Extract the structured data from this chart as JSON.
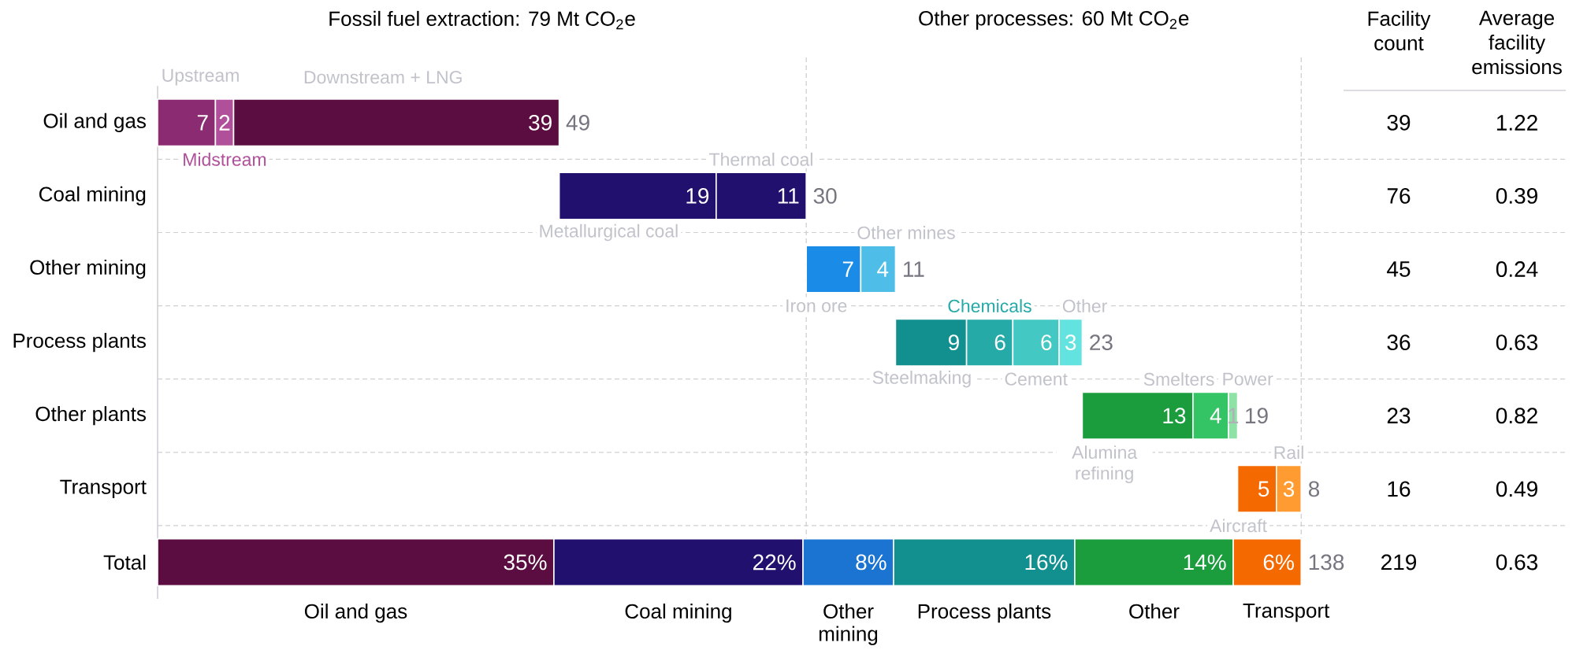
{
  "chart_data": [
    {
      "type": "bar",
      "orientation": "horizontal",
      "stacked": true,
      "categories": [
        "Oil and gas"
      ],
      "series": [
        {
          "name": "Upstream",
          "color": "#8b2b72",
          "values": [
            7.0
          ],
          "value_labels": [
            "7"
          ]
        },
        {
          "name": "Midstream",
          "color": "#b0509a",
          "values": [
            2.2
          ],
          "value_labels": [
            "2"
          ]
        },
        {
          "name": "Downstream + LNG",
          "color": "#5b0c40",
          "values": [
            39.4
          ],
          "value_labels": [
            "39"
          ]
        }
      ],
      "totals": [
        "49"
      ],
      "ref_lines": [
        {
          "axis": "x",
          "value": 78.5,
          "line_style": "dashed",
          "color": "#cccccc"
        },
        {
          "axis": "x",
          "value": 138.4,
          "line_style": "dashed",
          "color": "#cccccc"
        }
      ],
      "annotations": [
        "Fossil fuel extraction: 79 Mt CO$_{2}$e",
        "Other processes: 60 Mt CO$_{2}$e"
      ]
    },
    {
      "type": "bar",
      "orientation": "horizontal",
      "stacked": true,
      "categories": [
        "Coal mining"
      ],
      "series": [
        {
          "name": "Metallurgical coal",
          "color": "#22106e",
          "values": [
            19.0
          ],
          "value_labels": [
            "19"
          ]
        },
        {
          "name": "Thermal coal",
          "color": "#22106e",
          "values": [
            10.9
          ],
          "value_labels": [
            "11"
          ]
        }
      ],
      "totals": [
        "30"
      ]
    },
    {
      "type": "bar",
      "orientation": "horizontal",
      "stacked": true,
      "categories": [
        "Other mining"
      ],
      "series": [
        {
          "name": "Iron ore",
          "color": "#1a8be6",
          "values": [
            6.6
          ],
          "value_labels": [
            "7"
          ]
        },
        {
          "name": "Other mines",
          "color": "#4ebde8",
          "values": [
            4.2
          ],
          "value_labels": [
            "4"
          ]
        }
      ],
      "totals": [
        "11"
      ]
    },
    {
      "type": "bar",
      "orientation": "horizontal",
      "stacked": true,
      "categories": [
        "Process plants"
      ],
      "series": [
        {
          "name": "Steelmaking",
          "color": "#128f8f",
          "values": [
            8.6
          ],
          "value_labels": [
            "9"
          ]
        },
        {
          "name": "Chemicals",
          "color": "#25aaa8",
          "values": [
            5.6
          ],
          "value_labels": [
            "6"
          ]
        },
        {
          "name": "Cement",
          "color": "#44c8c3",
          "values": [
            5.6
          ],
          "value_labels": [
            "6"
          ]
        },
        {
          "name": "Other",
          "color": "#62e3df",
          "values": [
            2.8
          ],
          "value_labels": [
            "3"
          ]
        }
      ],
      "totals": [
        "23"
      ]
    },
    {
      "type": "bar",
      "orientation": "horizontal",
      "stacked": true,
      "categories": [
        "Other plants"
      ],
      "series": [
        {
          "name": "Alumina refining",
          "color": "#1b9d3e",
          "values": [
            13.4
          ],
          "value_labels": [
            "13"
          ]
        },
        {
          "name": "Smelters",
          "color": "#35c465",
          "values": [
            4.3
          ],
          "value_labels": [
            "4"
          ]
        },
        {
          "name": "Power",
          "color": "#8fe2a5",
          "values": [
            1.1
          ],
          "value_labels": [
            "1"
          ]
        }
      ],
      "totals": [
        "19"
      ]
    },
    {
      "type": "bar",
      "orientation": "horizontal",
      "stacked": true,
      "categories": [
        "Transport"
      ],
      "series": [
        {
          "name": "Aircraft",
          "color": "#f56a00",
          "values": [
            4.7
          ],
          "value_labels": [
            "5"
          ]
        },
        {
          "name": "Rail",
          "color": "#ff9b31",
          "values": [
            3.0
          ],
          "value_labels": [
            "3"
          ]
        }
      ],
      "totals": [
        "8"
      ]
    },
    {
      "type": "bar",
      "orientation": "horizontal",
      "stacked": true,
      "categories": [
        "Total"
      ],
      "series": [
        {
          "name": "Oil and gas",
          "color": "#5b0c40",
          "values": [
            35
          ],
          "value_labels": [
            "35%"
          ]
        },
        {
          "name": "Coal mining",
          "color": "#22106e",
          "values": [
            22
          ],
          "value_labels": [
            "22%"
          ]
        },
        {
          "name": "Other mining",
          "color": "#1b74d2",
          "values": [
            8
          ],
          "value_labels": [
            "8%"
          ]
        },
        {
          "name": "Process plants",
          "color": "#128f8f",
          "values": [
            16
          ],
          "value_labels": [
            "16%"
          ]
        },
        {
          "name": "Other",
          "color": "#1b9d3e",
          "values": [
            14
          ],
          "value_labels": [
            "14%"
          ]
        },
        {
          "name": "Transport",
          "color": "#f56a00",
          "values": [
            6
          ],
          "value_labels": [
            "6%"
          ]
        }
      ],
      "annotations": [
        {
          "text": "138",
          "x": 101,
          "y": "Total"
        }
      ]
    },
    {
      "type": "other",
      "annotations": [
        "Facility count",
        "Average facility emissions",
        "39",
        "1.22",
        "76",
        "0.39",
        "45",
        "0.24",
        "36",
        "0.63",
        "23",
        "0.82",
        "16",
        "0.49",
        "219",
        "0.63"
      ]
    }
  ]
}
